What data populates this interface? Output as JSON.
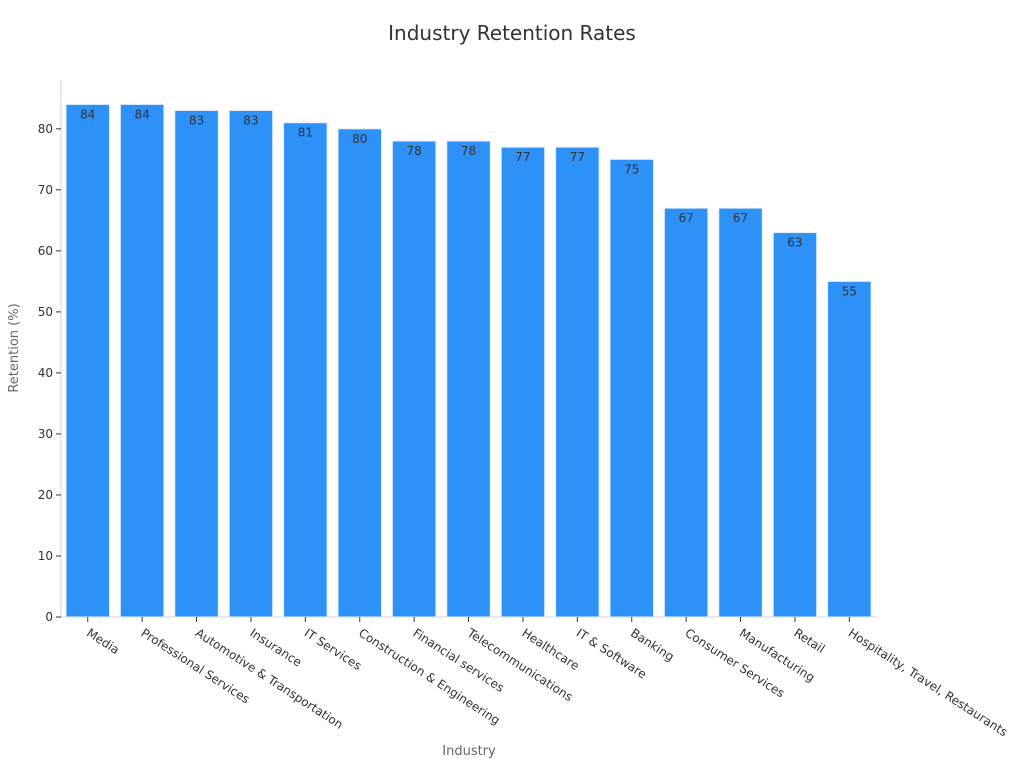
{
  "chart_data": {
    "type": "bar",
    "title": "Industry Retention Rates",
    "xlabel": "Industry",
    "ylabel": "Retention (%)",
    "categories": [
      "Media",
      "Professional Services",
      "Automotive & Transportation",
      "Insurance",
      "IT Services",
      "Construction & Engineering",
      "Financial services",
      "Telecommunications",
      "Healthcare",
      "IT & Software",
      "Banking",
      "Consumer Services",
      "Manufacturing",
      "Retail",
      "Hospitality, Travel, Restaurants"
    ],
    "values": [
      84,
      84,
      83,
      83,
      81,
      80,
      78,
      78,
      77,
      77,
      75,
      67,
      67,
      63,
      55
    ],
    "ylim": [
      0,
      88
    ],
    "yticks": [
      0,
      10,
      20,
      30,
      40,
      50,
      60,
      70,
      80
    ],
    "grid": false,
    "bar_color": "#2e91f7",
    "bar_edge_color": "#e6eef8",
    "label_color": "#333333"
  }
}
